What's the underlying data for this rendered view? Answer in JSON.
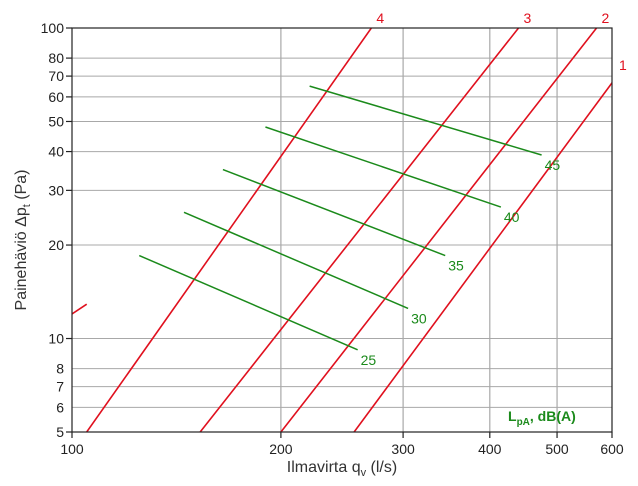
{
  "chart_data": {
    "type": "line",
    "x_scale": "log",
    "y_scale": "log",
    "xlim": [
      100,
      600
    ],
    "ylim": [
      5,
      100
    ],
    "x_ticks": [
      100,
      200,
      300,
      400,
      500,
      600
    ],
    "y_ticks": [
      5,
      6,
      7,
      8,
      10,
      20,
      30,
      40,
      50,
      60,
      70,
      80,
      100
    ],
    "x_major_ticks": [
      100,
      200,
      300,
      400,
      500,
      600
    ],
    "y_major_ticks": [
      5,
      10,
      20,
      30,
      40,
      50,
      60,
      70,
      80,
      100
    ],
    "grid": true,
    "xlabel": {
      "main": "Ilmavirta q",
      "sub": "v",
      "tail": " (l/s)"
    },
    "ylabel": {
      "main": "Painehäviö Δp",
      "sub": "t",
      "tail": " (Pa)"
    },
    "legend_text": {
      "main": "L",
      "sub": "pA",
      "tail": ", dB(A)"
    },
    "colors": {
      "pressure": "#e0101e",
      "sound": "#1b8a1b",
      "grid": "#a8a8a8",
      "axis": "#222222"
    },
    "pressure_series": [
      {
        "name": "1",
        "points": [
          [
            255,
            5
          ],
          [
            610,
            70
          ]
        ]
      },
      {
        "name": "2",
        "points": [
          [
            200,
            5
          ],
          [
            570,
            100
          ]
        ]
      },
      {
        "name": "3",
        "points": [
          [
            153,
            5
          ],
          [
            440,
            100
          ]
        ]
      },
      {
        "name": "4",
        "points": [
          [
            105,
            5
          ],
          [
            270,
            100
          ]
        ]
      },
      {
        "name": "",
        "points": [
          [
            100,
            12
          ],
          [
            105,
            12.9
          ]
        ]
      }
    ],
    "sound_series": [
      {
        "name": "25",
        "points": [
          [
            125,
            18.5
          ],
          [
            258,
            9.2
          ]
        ]
      },
      {
        "name": "30",
        "points": [
          [
            145,
            25.5
          ],
          [
            305,
            12.5
          ]
        ]
      },
      {
        "name": "35",
        "points": [
          [
            165,
            35
          ],
          [
            345,
            18.5
          ]
        ]
      },
      {
        "name": "40",
        "points": [
          [
            190,
            48
          ],
          [
            415,
            26.5
          ]
        ]
      },
      {
        "name": "45",
        "points": [
          [
            220,
            65
          ],
          [
            475,
            39
          ]
        ]
      }
    ]
  }
}
